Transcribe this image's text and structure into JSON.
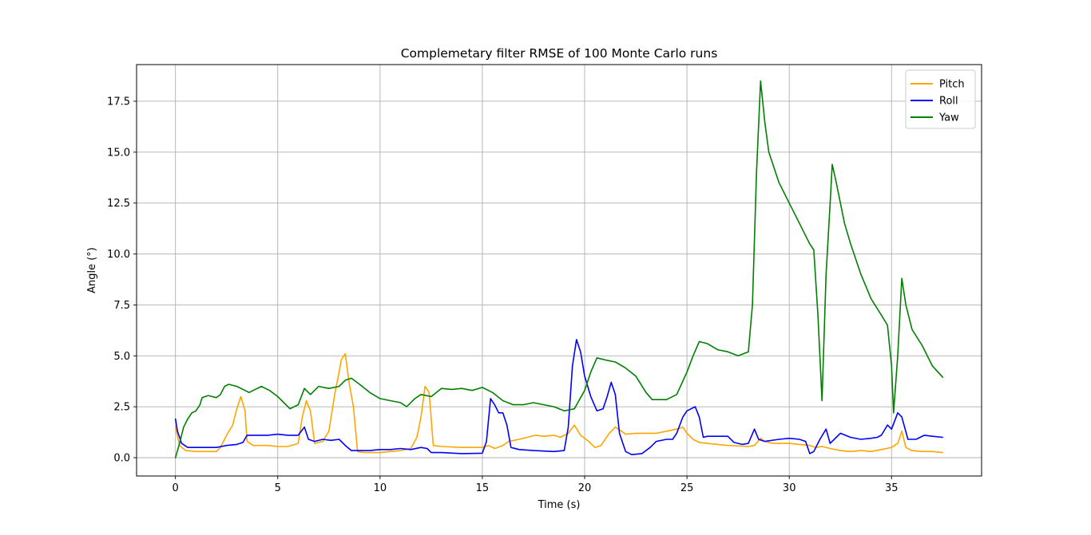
{
  "chart_data": {
    "type": "line",
    "title": "Complemetary filter RMSE of 100 Monte Carlo runs",
    "xlabel": "Time (s)",
    "ylabel": "Angle (°)",
    "xlim": [
      -1.9,
      39.4
    ],
    "ylim": [
      -0.9,
      19.3
    ],
    "xticks": [
      0,
      5,
      10,
      15,
      20,
      25,
      30,
      35
    ],
    "yticks": [
      0.0,
      2.5,
      5.0,
      7.5,
      10.0,
      12.5,
      15.0,
      17.5
    ],
    "xtick_labels": [
      "0",
      "5",
      "10",
      "15",
      "20",
      "25",
      "30",
      "35"
    ],
    "ytick_labels": [
      "0.0",
      "2.5",
      "5.0",
      "7.5",
      "10.0",
      "12.5",
      "15.0",
      "17.5"
    ],
    "grid": true,
    "legend_position": "top-right",
    "series": [
      {
        "name": "Pitch",
        "color": "#ffa500",
        "points": [
          [
            0,
            1.5
          ],
          [
            0.2,
            0.6
          ],
          [
            0.5,
            0.35
          ],
          [
            1,
            0.3
          ],
          [
            1.5,
            0.3
          ],
          [
            2,
            0.3
          ],
          [
            2.2,
            0.5
          ],
          [
            2.5,
            1.1
          ],
          [
            2.8,
            1.6
          ],
          [
            3.0,
            2.4
          ],
          [
            3.2,
            3.0
          ],
          [
            3.4,
            2.3
          ],
          [
            3.5,
            0.8
          ],
          [
            3.8,
            0.6
          ],
          [
            4.5,
            0.6
          ],
          [
            5,
            0.55
          ],
          [
            5.5,
            0.55
          ],
          [
            6.0,
            0.7
          ],
          [
            6.2,
            2.0
          ],
          [
            6.4,
            2.8
          ],
          [
            6.6,
            2.3
          ],
          [
            6.8,
            0.7
          ],
          [
            7.2,
            0.8
          ],
          [
            7.5,
            1.3
          ],
          [
            7.8,
            3.2
          ],
          [
            8.0,
            4.2
          ],
          [
            8.1,
            4.8
          ],
          [
            8.3,
            5.1
          ],
          [
            8.5,
            3.6
          ],
          [
            8.7,
            2.5
          ],
          [
            8.9,
            0.3
          ],
          [
            9.2,
            0.25
          ],
          [
            10,
            0.25
          ],
          [
            10.5,
            0.3
          ],
          [
            11,
            0.35
          ],
          [
            11.5,
            0.45
          ],
          [
            11.8,
            1.0
          ],
          [
            12.0,
            2.0
          ],
          [
            12.2,
            3.5
          ],
          [
            12.4,
            3.2
          ],
          [
            12.6,
            0.6
          ],
          [
            13,
            0.55
          ],
          [
            14,
            0.5
          ],
          [
            15,
            0.5
          ],
          [
            15.3,
            0.6
          ],
          [
            15.6,
            0.45
          ],
          [
            16,
            0.6
          ],
          [
            16.3,
            0.8
          ],
          [
            16.8,
            0.9
          ],
          [
            17.2,
            1.0
          ],
          [
            17.6,
            1.1
          ],
          [
            18,
            1.05
          ],
          [
            18.5,
            1.1
          ],
          [
            18.8,
            1.0
          ],
          [
            19.2,
            1.2
          ],
          [
            19.5,
            1.6
          ],
          [
            19.8,
            1.1
          ],
          [
            20.2,
            0.8
          ],
          [
            20.5,
            0.5
          ],
          [
            20.8,
            0.6
          ],
          [
            21.2,
            1.2
          ],
          [
            21.5,
            1.5
          ],
          [
            21.8,
            1.3
          ],
          [
            22.0,
            1.15
          ],
          [
            22.5,
            1.2
          ],
          [
            23,
            1.2
          ],
          [
            23.5,
            1.2
          ],
          [
            24,
            1.3
          ],
          [
            24.5,
            1.4
          ],
          [
            24.8,
            1.5
          ],
          [
            25.0,
            1.2
          ],
          [
            25.3,
            0.9
          ],
          [
            25.6,
            0.75
          ],
          [
            26,
            0.7
          ],
          [
            27,
            0.6
          ],
          [
            28,
            0.55
          ],
          [
            28.3,
            0.6
          ],
          [
            28.6,
            0.95
          ],
          [
            28.8,
            0.8
          ],
          [
            29.2,
            0.7
          ],
          [
            30,
            0.7
          ],
          [
            30.5,
            0.65
          ],
          [
            31,
            0.6
          ],
          [
            31.3,
            0.5
          ],
          [
            31.6,
            0.55
          ],
          [
            32,
            0.45
          ],
          [
            32.5,
            0.35
          ],
          [
            33,
            0.3
          ],
          [
            33.5,
            0.35
          ],
          [
            34,
            0.3
          ],
          [
            34.5,
            0.4
          ],
          [
            35,
            0.5
          ],
          [
            35.3,
            0.7
          ],
          [
            35.5,
            1.3
          ],
          [
            35.7,
            0.5
          ],
          [
            36,
            0.35
          ],
          [
            36.5,
            0.3
          ],
          [
            37,
            0.3
          ],
          [
            37.5,
            0.25
          ]
        ]
      },
      {
        "name": "Roll",
        "color": "#0000ff",
        "points": [
          [
            0,
            1.9
          ],
          [
            0.1,
            1.3
          ],
          [
            0.3,
            0.7
          ],
          [
            0.6,
            0.5
          ],
          [
            1,
            0.5
          ],
          [
            2,
            0.5
          ],
          [
            2.5,
            0.6
          ],
          [
            3.0,
            0.65
          ],
          [
            3.3,
            0.75
          ],
          [
            3.5,
            1.1
          ],
          [
            4,
            1.1
          ],
          [
            4.5,
            1.1
          ],
          [
            5,
            1.15
          ],
          [
            5.5,
            1.1
          ],
          [
            6.0,
            1.1
          ],
          [
            6.3,
            1.5
          ],
          [
            6.5,
            0.9
          ],
          [
            6.8,
            0.8
          ],
          [
            7.2,
            0.9
          ],
          [
            7.6,
            0.85
          ],
          [
            8.0,
            0.9
          ],
          [
            8.3,
            0.6
          ],
          [
            8.6,
            0.35
          ],
          [
            9,
            0.35
          ],
          [
            9.5,
            0.35
          ],
          [
            10,
            0.4
          ],
          [
            10.5,
            0.4
          ],
          [
            11,
            0.45
          ],
          [
            11.5,
            0.4
          ],
          [
            12,
            0.5
          ],
          [
            12.3,
            0.45
          ],
          [
            12.5,
            0.25
          ],
          [
            13,
            0.25
          ],
          [
            14,
            0.2
          ],
          [
            15,
            0.22
          ],
          [
            15.2,
            0.8
          ],
          [
            15.4,
            2.9
          ],
          [
            15.6,
            2.6
          ],
          [
            15.8,
            2.2
          ],
          [
            16.0,
            2.2
          ],
          [
            16.2,
            1.6
          ],
          [
            16.4,
            0.5
          ],
          [
            16.8,
            0.4
          ],
          [
            17.5,
            0.35
          ],
          [
            18.5,
            0.3
          ],
          [
            19.0,
            0.35
          ],
          [
            19.2,
            1.5
          ],
          [
            19.4,
            4.5
          ],
          [
            19.6,
            5.8
          ],
          [
            19.8,
            5.2
          ],
          [
            20.0,
            4.0
          ],
          [
            20.3,
            3.0
          ],
          [
            20.6,
            2.3
          ],
          [
            20.9,
            2.4
          ],
          [
            21.1,
            3.0
          ],
          [
            21.3,
            3.7
          ],
          [
            21.5,
            3.1
          ],
          [
            21.7,
            1.2
          ],
          [
            22.0,
            0.3
          ],
          [
            22.3,
            0.15
          ],
          [
            22.8,
            0.2
          ],
          [
            23.2,
            0.5
          ],
          [
            23.5,
            0.8
          ],
          [
            24,
            0.9
          ],
          [
            24.3,
            0.9
          ],
          [
            24.5,
            1.2
          ],
          [
            24.8,
            2.0
          ],
          [
            25.0,
            2.3
          ],
          [
            25.4,
            2.5
          ],
          [
            25.6,
            2.0
          ],
          [
            25.8,
            1.0
          ],
          [
            26,
            1.05
          ],
          [
            27,
            1.05
          ],
          [
            27.3,
            0.75
          ],
          [
            27.7,
            0.65
          ],
          [
            28.0,
            0.7
          ],
          [
            28.3,
            1.4
          ],
          [
            28.5,
            0.9
          ],
          [
            28.8,
            0.8
          ],
          [
            29.5,
            0.9
          ],
          [
            30,
            0.95
          ],
          [
            30.5,
            0.9
          ],
          [
            30.8,
            0.8
          ],
          [
            31.0,
            0.2
          ],
          [
            31.2,
            0.3
          ],
          [
            31.5,
            0.9
          ],
          [
            31.8,
            1.4
          ],
          [
            32.0,
            0.7
          ],
          [
            32.3,
            1.0
          ],
          [
            32.5,
            1.2
          ],
          [
            33,
            1.0
          ],
          [
            33.5,
            0.9
          ],
          [
            34,
            0.95
          ],
          [
            34.3,
            1.0
          ],
          [
            34.5,
            1.1
          ],
          [
            34.8,
            1.6
          ],
          [
            35.0,
            1.4
          ],
          [
            35.3,
            2.2
          ],
          [
            35.5,
            2.0
          ],
          [
            35.8,
            0.9
          ],
          [
            36.2,
            0.9
          ],
          [
            36.6,
            1.1
          ],
          [
            37,
            1.05
          ],
          [
            37.5,
            1.0
          ]
        ]
      },
      {
        "name": "Yaw",
        "color": "#008000",
        "points": [
          [
            0,
            0.0
          ],
          [
            0.2,
            0.7
          ],
          [
            0.4,
            1.5
          ],
          [
            0.6,
            1.9
          ],
          [
            0.8,
            2.2
          ],
          [
            1.0,
            2.3
          ],
          [
            1.2,
            2.6
          ],
          [
            1.3,
            2.95
          ],
          [
            1.6,
            3.05
          ],
          [
            2.0,
            2.95
          ],
          [
            2.2,
            3.1
          ],
          [
            2.4,
            3.5
          ],
          [
            2.6,
            3.6
          ],
          [
            3.0,
            3.5
          ],
          [
            3.4,
            3.3
          ],
          [
            3.6,
            3.2
          ],
          [
            3.8,
            3.3
          ],
          [
            4.2,
            3.5
          ],
          [
            4.6,
            3.3
          ],
          [
            5.0,
            3.0
          ],
          [
            5.3,
            2.7
          ],
          [
            5.6,
            2.4
          ],
          [
            6.0,
            2.6
          ],
          [
            6.3,
            3.4
          ],
          [
            6.6,
            3.1
          ],
          [
            7.0,
            3.5
          ],
          [
            7.5,
            3.4
          ],
          [
            8.0,
            3.5
          ],
          [
            8.3,
            3.8
          ],
          [
            8.6,
            3.9
          ],
          [
            9.0,
            3.6
          ],
          [
            9.5,
            3.2
          ],
          [
            10.0,
            2.9
          ],
          [
            10.5,
            2.8
          ],
          [
            11.0,
            2.7
          ],
          [
            11.3,
            2.5
          ],
          [
            11.7,
            2.9
          ],
          [
            12.0,
            3.1
          ],
          [
            12.5,
            3.0
          ],
          [
            13.0,
            3.4
          ],
          [
            13.5,
            3.35
          ],
          [
            14.0,
            3.4
          ],
          [
            14.5,
            3.3
          ],
          [
            15.0,
            3.45
          ],
          [
            15.5,
            3.2
          ],
          [
            16.0,
            2.8
          ],
          [
            16.5,
            2.6
          ],
          [
            17.0,
            2.6
          ],
          [
            17.5,
            2.7
          ],
          [
            18.0,
            2.6
          ],
          [
            18.5,
            2.5
          ],
          [
            19.0,
            2.3
          ],
          [
            19.5,
            2.4
          ],
          [
            20.0,
            3.3
          ],
          [
            20.3,
            4.2
          ],
          [
            20.6,
            4.9
          ],
          [
            21.0,
            4.8
          ],
          [
            21.5,
            4.7
          ],
          [
            22.0,
            4.4
          ],
          [
            22.5,
            4.0
          ],
          [
            23.0,
            3.2
          ],
          [
            23.3,
            2.85
          ],
          [
            24.0,
            2.85
          ],
          [
            24.5,
            3.1
          ],
          [
            25.0,
            4.2
          ],
          [
            25.3,
            5.0
          ],
          [
            25.6,
            5.7
          ],
          [
            26.0,
            5.6
          ],
          [
            26.5,
            5.3
          ],
          [
            27.0,
            5.2
          ],
          [
            27.5,
            5.0
          ],
          [
            28.0,
            5.2
          ],
          [
            28.2,
            7.5
          ],
          [
            28.4,
            14.0
          ],
          [
            28.6,
            18.5
          ],
          [
            28.8,
            16.5
          ],
          [
            29.0,
            15.0
          ],
          [
            29.5,
            13.5
          ],
          [
            30.0,
            12.5
          ],
          [
            30.5,
            11.5
          ],
          [
            31.0,
            10.5
          ],
          [
            31.2,
            10.2
          ],
          [
            31.4,
            7.0
          ],
          [
            31.6,
            2.8
          ],
          [
            31.8,
            9.0
          ],
          [
            32.0,
            12.5
          ],
          [
            32.1,
            14.4
          ],
          [
            32.3,
            13.5
          ],
          [
            32.7,
            11.5
          ],
          [
            33.0,
            10.5
          ],
          [
            33.5,
            9.0
          ],
          [
            34.0,
            7.8
          ],
          [
            34.5,
            7.0
          ],
          [
            34.8,
            6.5
          ],
          [
            35.0,
            4.5
          ],
          [
            35.1,
            2.2
          ],
          [
            35.3,
            5.0
          ],
          [
            35.5,
            8.8
          ],
          [
            35.7,
            7.5
          ],
          [
            36.0,
            6.3
          ],
          [
            36.5,
            5.5
          ],
          [
            37.0,
            4.5
          ],
          [
            37.5,
            3.95
          ]
        ]
      }
    ]
  }
}
